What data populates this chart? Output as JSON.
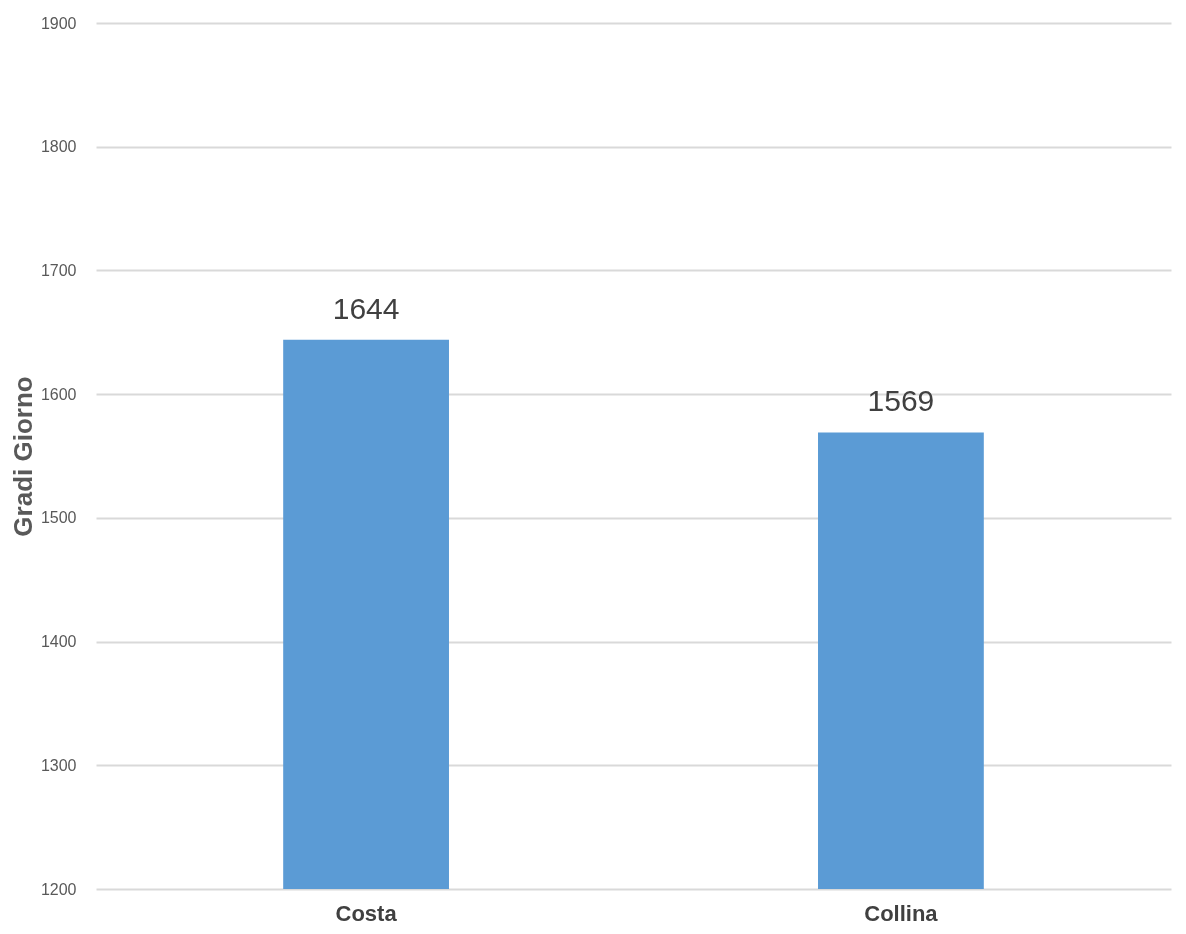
{
  "chart_data": {
    "type": "bar",
    "ylabel": "Gradi Giorno",
    "categories": [
      "Costa",
      "Collina"
    ],
    "values": [
      1644,
      1569
    ],
    "color": "#5b9bd5",
    "ylim": [
      1200,
      1900
    ],
    "yticks": [
      1200,
      1300,
      1400,
      1500,
      1600,
      1700,
      1800,
      1900
    ],
    "grid": "y",
    "data_labels": true
  }
}
